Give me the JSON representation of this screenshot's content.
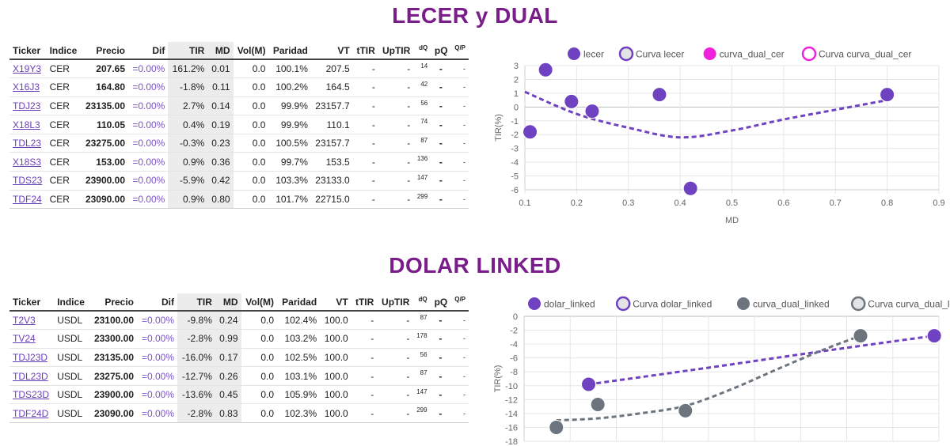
{
  "sections": [
    {
      "title": "LECER y DUAL",
      "columns": [
        "Ticker",
        "Indice",
        "Precio",
        "Dif",
        "TIR",
        "MD",
        "Vol(M)",
        "Paridad",
        "VT",
        "tTIR",
        "UpTIR",
        "dQ",
        "pQ",
        "Q/P"
      ],
      "rows": [
        [
          "X19Y3",
          "CER",
          "207.65",
          "=0.00%",
          "161.2%",
          "0.01",
          "0.0",
          "100.1%",
          "207.5",
          "-",
          "-",
          "14",
          "-",
          "-"
        ],
        [
          "X16J3",
          "CER",
          "164.80",
          "=0.00%",
          "-1.8%",
          "0.11",
          "0.0",
          "100.2%",
          "164.5",
          "-",
          "-",
          "42",
          "-",
          "-"
        ],
        [
          "TDJ23",
          "CER",
          "23135.00",
          "=0.00%",
          "2.7%",
          "0.14",
          "0.0",
          "99.9%",
          "23157.7",
          "-",
          "-",
          "56",
          "-",
          "-"
        ],
        [
          "X18L3",
          "CER",
          "110.05",
          "=0.00%",
          "0.4%",
          "0.19",
          "0.0",
          "99.9%",
          "110.1",
          "-",
          "-",
          "74",
          "-",
          "-"
        ],
        [
          "TDL23",
          "CER",
          "23275.00",
          "=0.00%",
          "-0.3%",
          "0.23",
          "0.0",
          "100.5%",
          "23157.7",
          "-",
          "-",
          "87",
          "-",
          "-"
        ],
        [
          "X18S3",
          "CER",
          "153.00",
          "=0.00%",
          "0.9%",
          "0.36",
          "0.0",
          "99.7%",
          "153.5",
          "-",
          "-",
          "136",
          "-",
          "-"
        ],
        [
          "TDS23",
          "CER",
          "23900.00",
          "=0.00%",
          "-5.9%",
          "0.42",
          "0.0",
          "103.3%",
          "23133.0",
          "-",
          "-",
          "147",
          "-",
          "-"
        ],
        [
          "TDF24",
          "CER",
          "23090.00",
          "=0.00%",
          "0.9%",
          "0.80",
          "0.0",
          "101.7%",
          "22715.0",
          "-",
          "-",
          "299",
          "-",
          "-"
        ]
      ]
    },
    {
      "title": "DOLAR LINKED",
      "columns": [
        "Ticker",
        "Indice",
        "Precio",
        "Dif",
        "TIR",
        "MD",
        "Vol(M)",
        "Paridad",
        "VT",
        "tTIR",
        "UpTIR",
        "dQ",
        "pQ",
        "Q/P"
      ],
      "rows": [
        [
          "T2V3",
          "USDL",
          "23100.00",
          "=0.00%",
          "-9.8%",
          "0.24",
          "0.0",
          "102.4%",
          "100.0",
          "-",
          "-",
          "87",
          "-",
          "-"
        ],
        [
          "TV24",
          "USDL",
          "23300.00",
          "=0.00%",
          "-2.8%",
          "0.99",
          "0.0",
          "103.2%",
          "100.0",
          "-",
          "-",
          "178",
          "-",
          "-"
        ],
        [
          "TDJ23D",
          "USDL",
          "23135.00",
          "=0.00%",
          "-16.0%",
          "0.17",
          "0.0",
          "102.5%",
          "100.0",
          "-",
          "-",
          "56",
          "-",
          "-"
        ],
        [
          "TDL23D",
          "USDL",
          "23275.00",
          "=0.00%",
          "-12.7%",
          "0.26",
          "0.0",
          "103.1%",
          "100.0",
          "-",
          "-",
          "87",
          "-",
          "-"
        ],
        [
          "TDS23D",
          "USDL",
          "23900.00",
          "=0.00%",
          "-13.6%",
          "0.45",
          "0.0",
          "105.9%",
          "100.0",
          "-",
          "-",
          "147",
          "-",
          "-"
        ],
        [
          "TDF24D",
          "USDL",
          "23090.00",
          "=0.00%",
          "-2.8%",
          "0.83",
          "0.0",
          "102.3%",
          "100.0",
          "-",
          "-",
          "299",
          "-",
          "-"
        ]
      ]
    }
  ],
  "chart_data": [
    {
      "type": "scatter",
      "xlabel": "MD",
      "ylabel": "TIR(%)",
      "xlim": [
        0.1,
        0.9
      ],
      "ylim": [
        -6,
        3
      ],
      "xticks": [
        "0.1",
        "0.2",
        "0.3",
        "0.4",
        "0.5",
        "0.6",
        "0.7",
        "0.8",
        "0.9"
      ],
      "yticks": [
        "3",
        "2",
        "1",
        "0",
        "-1",
        "-2",
        "-3",
        "-4",
        "-5",
        "-6"
      ],
      "grid": true,
      "legend_position": "top",
      "series": [
        {
          "name": "lecer",
          "kind": "points",
          "color": "#6f42c1",
          "x": [
            0.11,
            0.14,
            0.19,
            0.23,
            0.36,
            0.42,
            0.8
          ],
          "y": [
            -1.8,
            2.7,
            0.4,
            -0.3,
            0.9,
            -5.9,
            0.9
          ]
        },
        {
          "name": "Curva lecer",
          "kind": "dashed-line",
          "color": "#6f42c1",
          "x": [
            0.1,
            0.2,
            0.3,
            0.4,
            0.5,
            0.6,
            0.7,
            0.8
          ],
          "y": [
            1.1,
            -0.5,
            -1.5,
            -2.2,
            -1.7,
            -0.9,
            -0.2,
            0.5
          ]
        },
        {
          "name": "curva_dual_cer",
          "kind": "points",
          "color": "#ee22dd",
          "x": [],
          "y": []
        },
        {
          "name": "Curva curva_dual_cer",
          "kind": "dashed-line",
          "color": "#ee22dd",
          "x": [],
          "y": []
        }
      ]
    },
    {
      "type": "scatter",
      "xlabel": "",
      "ylabel": "TIR(%)",
      "xlim": [
        0.1,
        1.0
      ],
      "ylim": [
        -18,
        0
      ],
      "yticks": [
        "0",
        "-2",
        "-4",
        "-6",
        "-8",
        "-10",
        "-12",
        "-14",
        "-16",
        "-18"
      ],
      "grid": true,
      "legend_position": "top",
      "series": [
        {
          "name": "dolar_linked",
          "kind": "points",
          "color": "#6f42c1",
          "x": [
            0.24,
            0.99
          ],
          "y": [
            -9.8,
            -2.8
          ]
        },
        {
          "name": "Curva dolar_linked",
          "kind": "dashed-line",
          "color": "#6f42c1",
          "x": [
            0.24,
            0.5,
            0.75,
            0.99
          ],
          "y": [
            -9.8,
            -7.4,
            -5.0,
            -2.8
          ]
        },
        {
          "name": "curva_dual_linked",
          "kind": "points",
          "color": "#6c757d",
          "x": [
            0.17,
            0.26,
            0.45,
            0.83
          ],
          "y": [
            -16.0,
            -12.7,
            -13.6,
            -2.8
          ]
        },
        {
          "name": "Curva curva_dual_linked",
          "kind": "dashed-line",
          "color": "#6c757d",
          "x": [
            0.17,
            0.26,
            0.35,
            0.45,
            0.55,
            0.65,
            0.75,
            0.83
          ],
          "y": [
            -15.0,
            -14.7,
            -14.0,
            -12.9,
            -10.5,
            -7.6,
            -4.8,
            -2.8
          ]
        }
      ]
    }
  ]
}
